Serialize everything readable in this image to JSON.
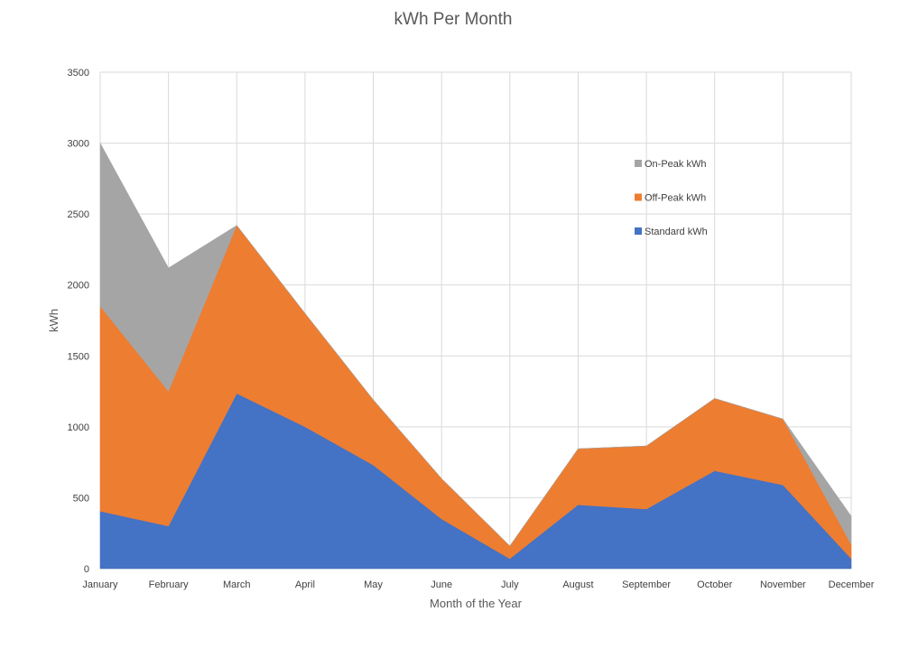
{
  "chart_data": {
    "type": "area",
    "stacked": true,
    "title": "kWh Per Month",
    "xlabel": "Month of the Year",
    "ylabel": "kWh",
    "ylim": [
      0,
      3500
    ],
    "yticks": [
      0,
      500,
      1000,
      1500,
      2000,
      2500,
      3000,
      3500
    ],
    "grid": true,
    "legend_position": "top-right-inside",
    "categories": [
      "January",
      "February",
      "March",
      "April",
      "May",
      "June",
      "July",
      "August",
      "September",
      "October",
      "November",
      "December"
    ],
    "series": [
      {
        "name": "Standard kWh",
        "color": "#4472C4",
        "values": [
          405,
          300,
          1235,
          1000,
          730,
          350,
          70,
          450,
          420,
          690,
          590,
          70
        ]
      },
      {
        "name": "Off-Peak kWh",
        "color": "#ED7D31",
        "values": [
          1445,
          950,
          1185,
          800,
          460,
          285,
          90,
          395,
          445,
          510,
          465,
          100
        ]
      },
      {
        "name": "On-Peak kWh",
        "color": "#A5A5A5",
        "values": [
          1150,
          870,
          0,
          0,
          0,
          0,
          0,
          0,
          0,
          0,
          0,
          200
        ]
      }
    ],
    "legend_order": [
      "On-Peak kWh",
      "Off-Peak kWh",
      "Standard kWh"
    ]
  }
}
